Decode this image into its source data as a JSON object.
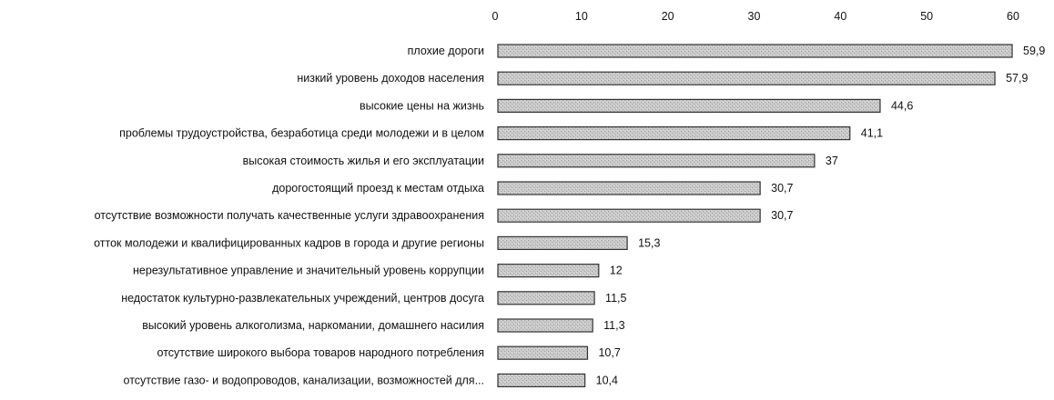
{
  "chart_data": {
    "type": "bar",
    "orientation": "horizontal",
    "categories": [
      "плохие дороги",
      "низкий уровень доходов населения",
      "высокие цены на жизнь",
      "проблемы трудоустройства, безработица среди молодежи и в целом",
      "высокая стоимость жилья и его эксплуатации",
      "дорогостоящий проезд к местам отдыха",
      "отсутствие возможности получать качественные услуги здравоохранения",
      "отток молодежи и квалифицированных кадров в города и другие регионы",
      "нерезультативное управление и значительный уровень коррупции",
      "недостаток культурно-развлекательных учреждений, центров досуга",
      "высокий уровень алкоголизма, наркомании, домашнего насилия",
      "отсутствие широкого выбора товаров народного потребления",
      "отсутствие газо- и водопроводов, канализации, возможностей для..."
    ],
    "values": [
      59.9,
      57.9,
      44.6,
      41.1,
      37,
      30.7,
      30.7,
      15.3,
      12,
      11.5,
      11.3,
      10.7,
      10.4
    ],
    "value_labels": [
      "59,9",
      "57,9",
      "44,6",
      "41,1",
      "37",
      "30,7",
      "30,7",
      "15,3",
      "12",
      "11,5",
      "11,3",
      "10,7",
      "10,4"
    ],
    "xlim": [
      0,
      60
    ],
    "x_ticks": [
      "0",
      "10",
      "20",
      "30",
      "40",
      "50",
      "60"
    ],
    "x_tick_values": [
      0,
      10,
      20,
      30,
      40,
      50,
      60
    ],
    "axis_position": "top",
    "grid": false,
    "legend": "none",
    "title": "",
    "xlabel": "",
    "ylabel": "",
    "colors": {
      "bar_fill": "#c8c8c8",
      "bar_stroke": "#333333",
      "text": "#111111"
    }
  }
}
